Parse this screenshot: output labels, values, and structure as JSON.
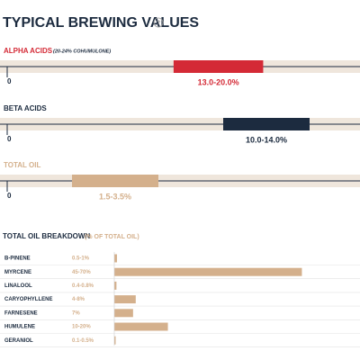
{
  "header": {
    "title": "TYPICAL BREWING VALUES",
    "help_icon": "?"
  },
  "ranges": [
    {
      "label": "ALPHA ACIDS",
      "note": "(20-24% COHUMULONE)",
      "low": 13.0,
      "high": 20.0,
      "range_label": "13.0-20.0%",
      "xlim": [
        0,
        27
      ],
      "color": "#d42a36"
    },
    {
      "label": "BETA ACIDS",
      "low": 10.0,
      "high": 14.0,
      "range_label": "10.0-14.0%",
      "xlim": [
        0,
        16
      ],
      "color": "#1c2b3f"
    },
    {
      "label": "TOTAL OIL",
      "low": 1.5,
      "high": 3.5,
      "range_label": "1.5-3.5%",
      "xlim": [
        0,
        8
      ],
      "color": "#d4b08c"
    }
  ],
  "breakdown": {
    "title": "TOTAL OIL BREAKDOWN",
    "subtitle": "(% OF TOTAL OIL)",
    "xlim": [
      0,
      90
    ],
    "color": "#d4b08c",
    "items": [
      {
        "name": "B-PINENE",
        "range": "0.5-1%",
        "max": 1
      },
      {
        "name": "MYRCENE",
        "range": "45-70%",
        "max": 70
      },
      {
        "name": "LINALOOL",
        "range": "0.4-0.8%",
        "max": 0.8
      },
      {
        "name": "CARYOPHYLLENE",
        "range": "4-8%",
        "max": 8
      },
      {
        "name": "FARNESENE",
        "range": "7%",
        "max": 7
      },
      {
        "name": "HUMULENE",
        "range": "10-20%",
        "max": 20
      },
      {
        "name": "GERANIOL",
        "range": "0.1-0.5%",
        "max": 0.5
      }
    ]
  }
}
